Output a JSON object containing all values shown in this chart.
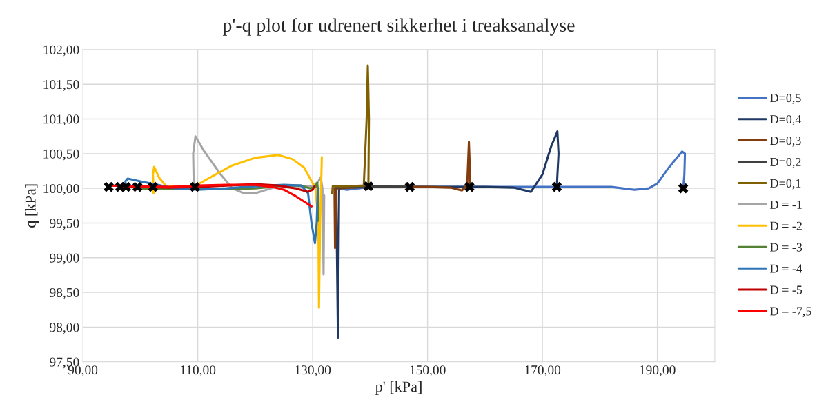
{
  "chart_data": {
    "type": "line",
    "title": "p'-q plot for udrenert sikkerhet i treaksanalyse",
    "xlabel": "p' [kPa]",
    "ylabel": "q [kPa]",
    "xlim": [
      90,
      200
    ],
    "ylim": [
      97.5,
      102
    ],
    "xticks": [
      {
        "value": 90,
        "label": "90,00"
      },
      {
        "value": 110,
        "label": "110,00"
      },
      {
        "value": 130,
        "label": "130,00"
      },
      {
        "value": 150,
        "label": "150,00"
      },
      {
        "value": 170,
        "label": "170,00"
      },
      {
        "value": 190,
        "label": "190,00"
      }
    ],
    "yticks": [
      {
        "value": 97.5,
        "label": "97,50"
      },
      {
        "value": 98,
        "label": "98,00"
      },
      {
        "value": 98.5,
        "label": "98,50"
      },
      {
        "value": 99,
        "label": "99,00"
      },
      {
        "value": 99.5,
        "label": "99,50"
      },
      {
        "value": 100,
        "label": "100,00"
      },
      {
        "value": 100.5,
        "label": "100,50"
      },
      {
        "value": 101,
        "label": "101,00"
      },
      {
        "value": 101.5,
        "label": "101,50"
      },
      {
        "value": 102,
        "label": "102,00"
      }
    ],
    "grid": true,
    "legend": "right",
    "marker": "none",
    "line_style": "solid",
    "series": [
      {
        "name": "D=0,5",
        "color": "#4472c4",
        "x": [
          134.5,
          136,
          138,
          140,
          150,
          160,
          170,
          178,
          182,
          186,
          188.5,
          190,
          192,
          194.3,
          194.8,
          194.7,
          194.5
        ],
        "values": [
          100.0,
          99.98,
          100.0,
          100.02,
          100.02,
          100.02,
          100.02,
          100.02,
          100.02,
          99.98,
          100.0,
          100.07,
          100.3,
          100.53,
          100.5,
          100.2,
          100.0
        ]
      },
      {
        "name": "D=0,4",
        "color": "#203864",
        "x": [
          134.1,
          134.4,
          134.6,
          136,
          140,
          150,
          160,
          165,
          168,
          170,
          171.5,
          172.6,
          172.8,
          172.5
        ],
        "values": [
          100.0,
          97.85,
          100.0,
          100.02,
          100.02,
          100.02,
          100.02,
          100.01,
          99.95,
          100.2,
          100.6,
          100.82,
          100.5,
          100.02
        ]
      },
      {
        "name": "D=0,3",
        "color": "#843c0c",
        "x": [
          133.8,
          133.9,
          134.1,
          140,
          150,
          154,
          156,
          156.9,
          157.2,
          157.4,
          157.3
        ],
        "values": [
          100.0,
          99.14,
          100.0,
          100.02,
          100.02,
          100.01,
          99.97,
          100.05,
          100.67,
          100.2,
          100.0
        ]
      },
      {
        "name": "D=0,2",
        "color": "#404040",
        "x": [
          134,
          139.7,
          146.9
        ],
        "values": [
          100.01,
          100.03,
          100.02
        ]
      },
      {
        "name": "D=0,1",
        "color": "#7f6000",
        "x": [
          133.4,
          133.5,
          136,
          138.9,
          139.4,
          139.6,
          139.8,
          139.7
        ],
        "values": [
          99.93,
          100.03,
          100.03,
          100.04,
          101.0,
          101.77,
          101.0,
          100.03
        ]
      },
      {
        "name": "D = -1",
        "color": "#a5a5a5",
        "x": [
          109.3,
          109.2,
          109.6,
          111,
          114,
          116,
          118,
          120,
          122,
          124,
          126,
          130,
          131,
          131.4,
          131.7,
          131.9,
          132
        ],
        "values": [
          100.02,
          100.5,
          100.75,
          100.55,
          100.2,
          100.0,
          99.93,
          99.93,
          99.98,
          100.03,
          100.03,
          100.03,
          100.1,
          100.16,
          100.0,
          98.76,
          99.9
        ]
      },
      {
        "name": "D = -2",
        "color": "#ffc000",
        "x": [
          102.3,
          102.2,
          102.4,
          103.3,
          104.5,
          106,
          109.5,
          112,
          116,
          120,
          124,
          126.5,
          128.5,
          130.5,
          131.0,
          131.1,
          131.3,
          131.6
        ],
        "values": [
          99.93,
          100.2,
          100.31,
          100.15,
          100.03,
          100.02,
          100.03,
          100.15,
          100.33,
          100.44,
          100.48,
          100.42,
          100.3,
          100.0,
          99.5,
          98.28,
          99.5,
          100.45
        ]
      },
      {
        "name": "D = -3",
        "color": "#548235",
        "x": [
          99.5,
          105,
          110,
          115,
          120,
          125,
          128,
          129.5,
          130.5,
          130.8,
          131,
          130.9
        ],
        "values": [
          100.0,
          99.99,
          99.99,
          99.99,
          100.0,
          100.04,
          100.04,
          100.0,
          100.02,
          100.08,
          99.9,
          99.53
        ]
      },
      {
        "name": "D = -4",
        "color": "#2e75b6",
        "x": [
          97.5,
          97.4,
          97.8,
          100,
          103,
          106,
          110,
          115,
          120,
          125,
          128,
          129.2,
          129.8,
          130.4,
          130.7,
          130.9
        ],
        "values": [
          100.02,
          100.1,
          100.14,
          100.1,
          100.05,
          100.0,
          99.98,
          100.0,
          100.03,
          100.05,
          100.04,
          99.93,
          99.5,
          99.21,
          99.5,
          100.0
        ]
      },
      {
        "name": "D = -5",
        "color": "#c00000",
        "x": [
          96.5,
          100,
          105,
          110,
          115,
          120,
          124,
          127,
          129.2,
          130,
          130.3
        ],
        "values": [
          100.03,
          100.02,
          100.01,
          100.02,
          100.04,
          100.06,
          100.04,
          100.0,
          99.95,
          99.98,
          100.03
        ]
      },
      {
        "name": "D = -7,5",
        "color": "#ff0000",
        "x": [
          94.5,
          100,
          105,
          110,
          115,
          120,
          123,
          125,
          127,
          129.8
        ],
        "values": [
          100.04,
          100.03,
          100.02,
          100.04,
          100.05,
          100.05,
          100.02,
          99.98,
          99.89,
          99.74
        ]
      },
      {
        "type": "scatter",
        "marker": "cross",
        "color": "#000000",
        "x": [
          94.5,
          96.5,
          97.5,
          99.5,
          102.2,
          109.5,
          139.7,
          146.9,
          157.3,
          172.5,
          194.5
        ],
        "values": [
          100.02,
          100.02,
          100.02,
          100.02,
          100.02,
          100.02,
          100.03,
          100.02,
          100.02,
          100.02,
          100.0
        ]
      }
    ]
  }
}
